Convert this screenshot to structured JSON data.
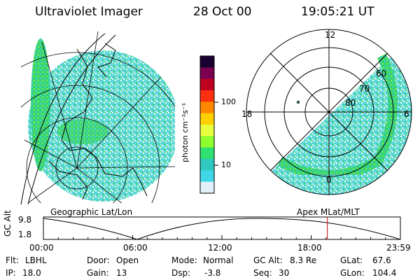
{
  "header": {
    "instrument": "Ultraviolet Imager",
    "date": "28 Oct 00",
    "time": "19:05:21 UT"
  },
  "colorbar": {
    "unit_label": "photon cm⁻²s⁻¹",
    "ticks": [
      "100",
      "10"
    ],
    "colors": [
      "#1a0030",
      "#7a0050",
      "#c00020",
      "#ff3010",
      "#ff8800",
      "#ffd000",
      "#e8ff40",
      "#90ff30",
      "#30e070",
      "#30c8c0",
      "#40d8e8",
      "#e0f0f8"
    ]
  },
  "geo_panel": {
    "caption": "Geographic Lat/Lon"
  },
  "apex_panel": {
    "caption": "Apex MLat/MLT",
    "mlt_labels": {
      "top": "12",
      "left": "18",
      "right": "6",
      "bottom": "0"
    },
    "mlat_labels": [
      "60",
      "70",
      "80"
    ]
  },
  "altitude_plot": {
    "ylabel": "GC Alt",
    "y_ticks": [
      "9.8",
      "1.8"
    ],
    "x_ticks": [
      "00:00",
      "06:00",
      "12:00",
      "18:00",
      "23:59"
    ],
    "current_time_marker_hours": 19.09,
    "marker_color": "#cc0000"
  },
  "info": {
    "row1": [
      {
        "label": "Flt:",
        "value": "LBHL"
      },
      {
        "label": "Door:",
        "value": "Open"
      },
      {
        "label": "Mode:",
        "value": "Normal"
      },
      {
        "label": "GC Alt:",
        "value": "8.3 Re"
      },
      {
        "label": "GLat:",
        "value": "67.6"
      }
    ],
    "row2": [
      {
        "label": "IP:",
        "value": "18.0"
      },
      {
        "label": "Gain:",
        "value": "13"
      },
      {
        "label": "Dsp:",
        "value": "-3.8"
      },
      {
        "label": "Seq:",
        "value": "30"
      },
      {
        "label": "GLon:",
        "value": "104.4"
      }
    ]
  }
}
